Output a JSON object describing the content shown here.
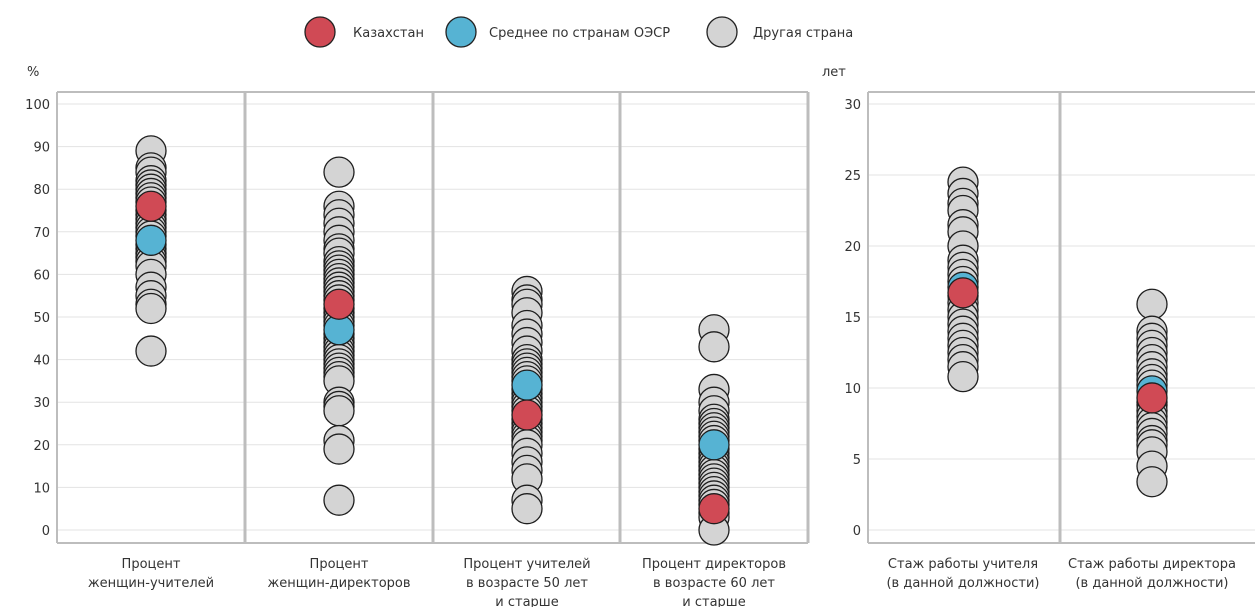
{
  "legend": {
    "items": [
      {
        "label": "Казахстан",
        "color": "#d04a55"
      },
      {
        "label": "Среднее по странам ОЭСР",
        "color": "#56b3d3"
      },
      {
        "label": "Другая страна",
        "color": "#d4d4d4"
      }
    ]
  },
  "chart_data": [
    {
      "type": "scatter",
      "unit_label": "%",
      "ylim": [
        0,
        100
      ],
      "yticks": [
        0,
        10,
        20,
        30,
        40,
        50,
        60,
        70,
        80,
        90,
        100
      ],
      "grid": true,
      "legend_position": "top-center",
      "categories": [
        {
          "label_lines": [
            "Процент",
            "женщин-учителей"
          ],
          "kazakhstan": 76,
          "oecd_average": 68,
          "other_countries": [
            42,
            52,
            53,
            55,
            57,
            60,
            62,
            63,
            64,
            65,
            66,
            67,
            69,
            70,
            71,
            72,
            73,
            74,
            75,
            77,
            78,
            79,
            80,
            81,
            82,
            84,
            85,
            89
          ]
        },
        {
          "label_lines": [
            "Процент",
            "женщин-директоров"
          ],
          "kazakhstan": 53,
          "oecd_average": 47,
          "other_countries": [
            7,
            19,
            21,
            28,
            29,
            30,
            35,
            36,
            37,
            38,
            39,
            40,
            41,
            42,
            43,
            44,
            45,
            46,
            48,
            49,
            50,
            51,
            52,
            54,
            55,
            56,
            57,
            58,
            59,
            60,
            61,
            62,
            63,
            65,
            66,
            68,
            70,
            72,
            74,
            76,
            84
          ]
        },
        {
          "label_lines": [
            "Процент учителей",
            "в возрасте 50 лет",
            "и старше"
          ],
          "kazakhstan": 27,
          "oecd_average": 34,
          "other_countries": [
            5,
            7,
            12,
            14,
            16,
            18,
            20,
            21,
            22,
            23,
            24,
            25,
            26,
            28,
            29,
            30,
            31,
            32,
            33,
            35,
            36,
            37,
            38,
            39,
            40,
            42,
            44,
            46,
            48,
            51,
            53,
            54,
            56
          ]
        },
        {
          "label_lines": [
            "Процент директоров",
            "в возрасте 60 лет",
            "и старше"
          ],
          "kazakhstan": 5,
          "oecd_average": 20,
          "other_countries": [
            0,
            3,
            4,
            6,
            7,
            8,
            9,
            10,
            11,
            12,
            13,
            14,
            15,
            16,
            17,
            18,
            19,
            21,
            22,
            23,
            24,
            25,
            26,
            28,
            30,
            33,
            43,
            47
          ]
        }
      ]
    },
    {
      "type": "scatter",
      "unit_label": "лет",
      "ylim": [
        0,
        30
      ],
      "yticks": [
        0,
        5,
        10,
        15,
        20,
        25,
        30
      ],
      "grid": true,
      "categories": [
        {
          "label_lines": [
            "Стаж работы учителя",
            "(в данной должности)"
          ],
          "kazakhstan": 16.7,
          "oecd_average": 17.1,
          "other_countries": [
            10.8,
            11.5,
            12.0,
            12.5,
            13.0,
            13.5,
            14.0,
            14.5,
            15.0,
            15.5,
            16.0,
            16.5,
            17.5,
            18.0,
            18.5,
            19.0,
            20.0,
            21.0,
            21.5,
            22.5,
            23.0,
            23.7,
            24.5
          ]
        },
        {
          "label_lines": [
            "Стаж работы директора",
            "(в данной должности)"
          ],
          "kazakhstan": 9.3,
          "oecd_average": 9.8,
          "other_countries": [
            3.4,
            4.5,
            5.5,
            6.0,
            6.3,
            6.8,
            7.2,
            7.6,
            8.0,
            8.4,
            8.8,
            9.0,
            10.2,
            10.6,
            11.0,
            11.5,
            12.0,
            12.5,
            13.0,
            13.5,
            14.0,
            15.9
          ]
        }
      ]
    }
  ]
}
